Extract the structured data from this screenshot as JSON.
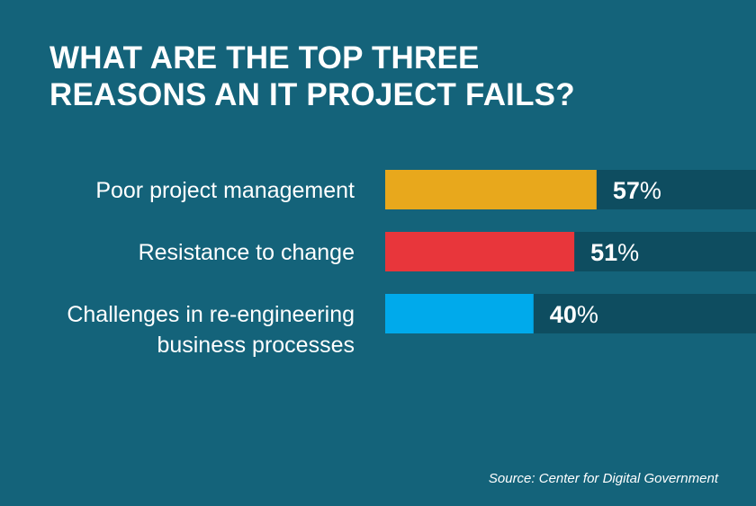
{
  "chart_data": {
    "type": "bar",
    "orientation": "horizontal",
    "title": "WHAT ARE THE TOP THREE REASONS AN IT PROJECT FAILS?",
    "title_lines": [
      "WHAT ARE THE TOP THREE",
      "REASONS AN IT PROJECT FAILS?"
    ],
    "categories": [
      [
        "Poor project management"
      ],
      [
        "Resistance to change"
      ],
      [
        "Challenges in re-engineering",
        "business processes"
      ]
    ],
    "values": [
      57,
      51,
      40
    ],
    "value_suffix": "%",
    "xlim": [
      0,
      100
    ],
    "colors": [
      "#e8a81c",
      "#e8363b",
      "#00aaeb"
    ],
    "track_color": "#0e4d60",
    "grid": false,
    "legend": "none"
  },
  "source": "Source: Center for Digital Government",
  "colors": {
    "background": "#14637a",
    "text": "#ffffff"
  }
}
